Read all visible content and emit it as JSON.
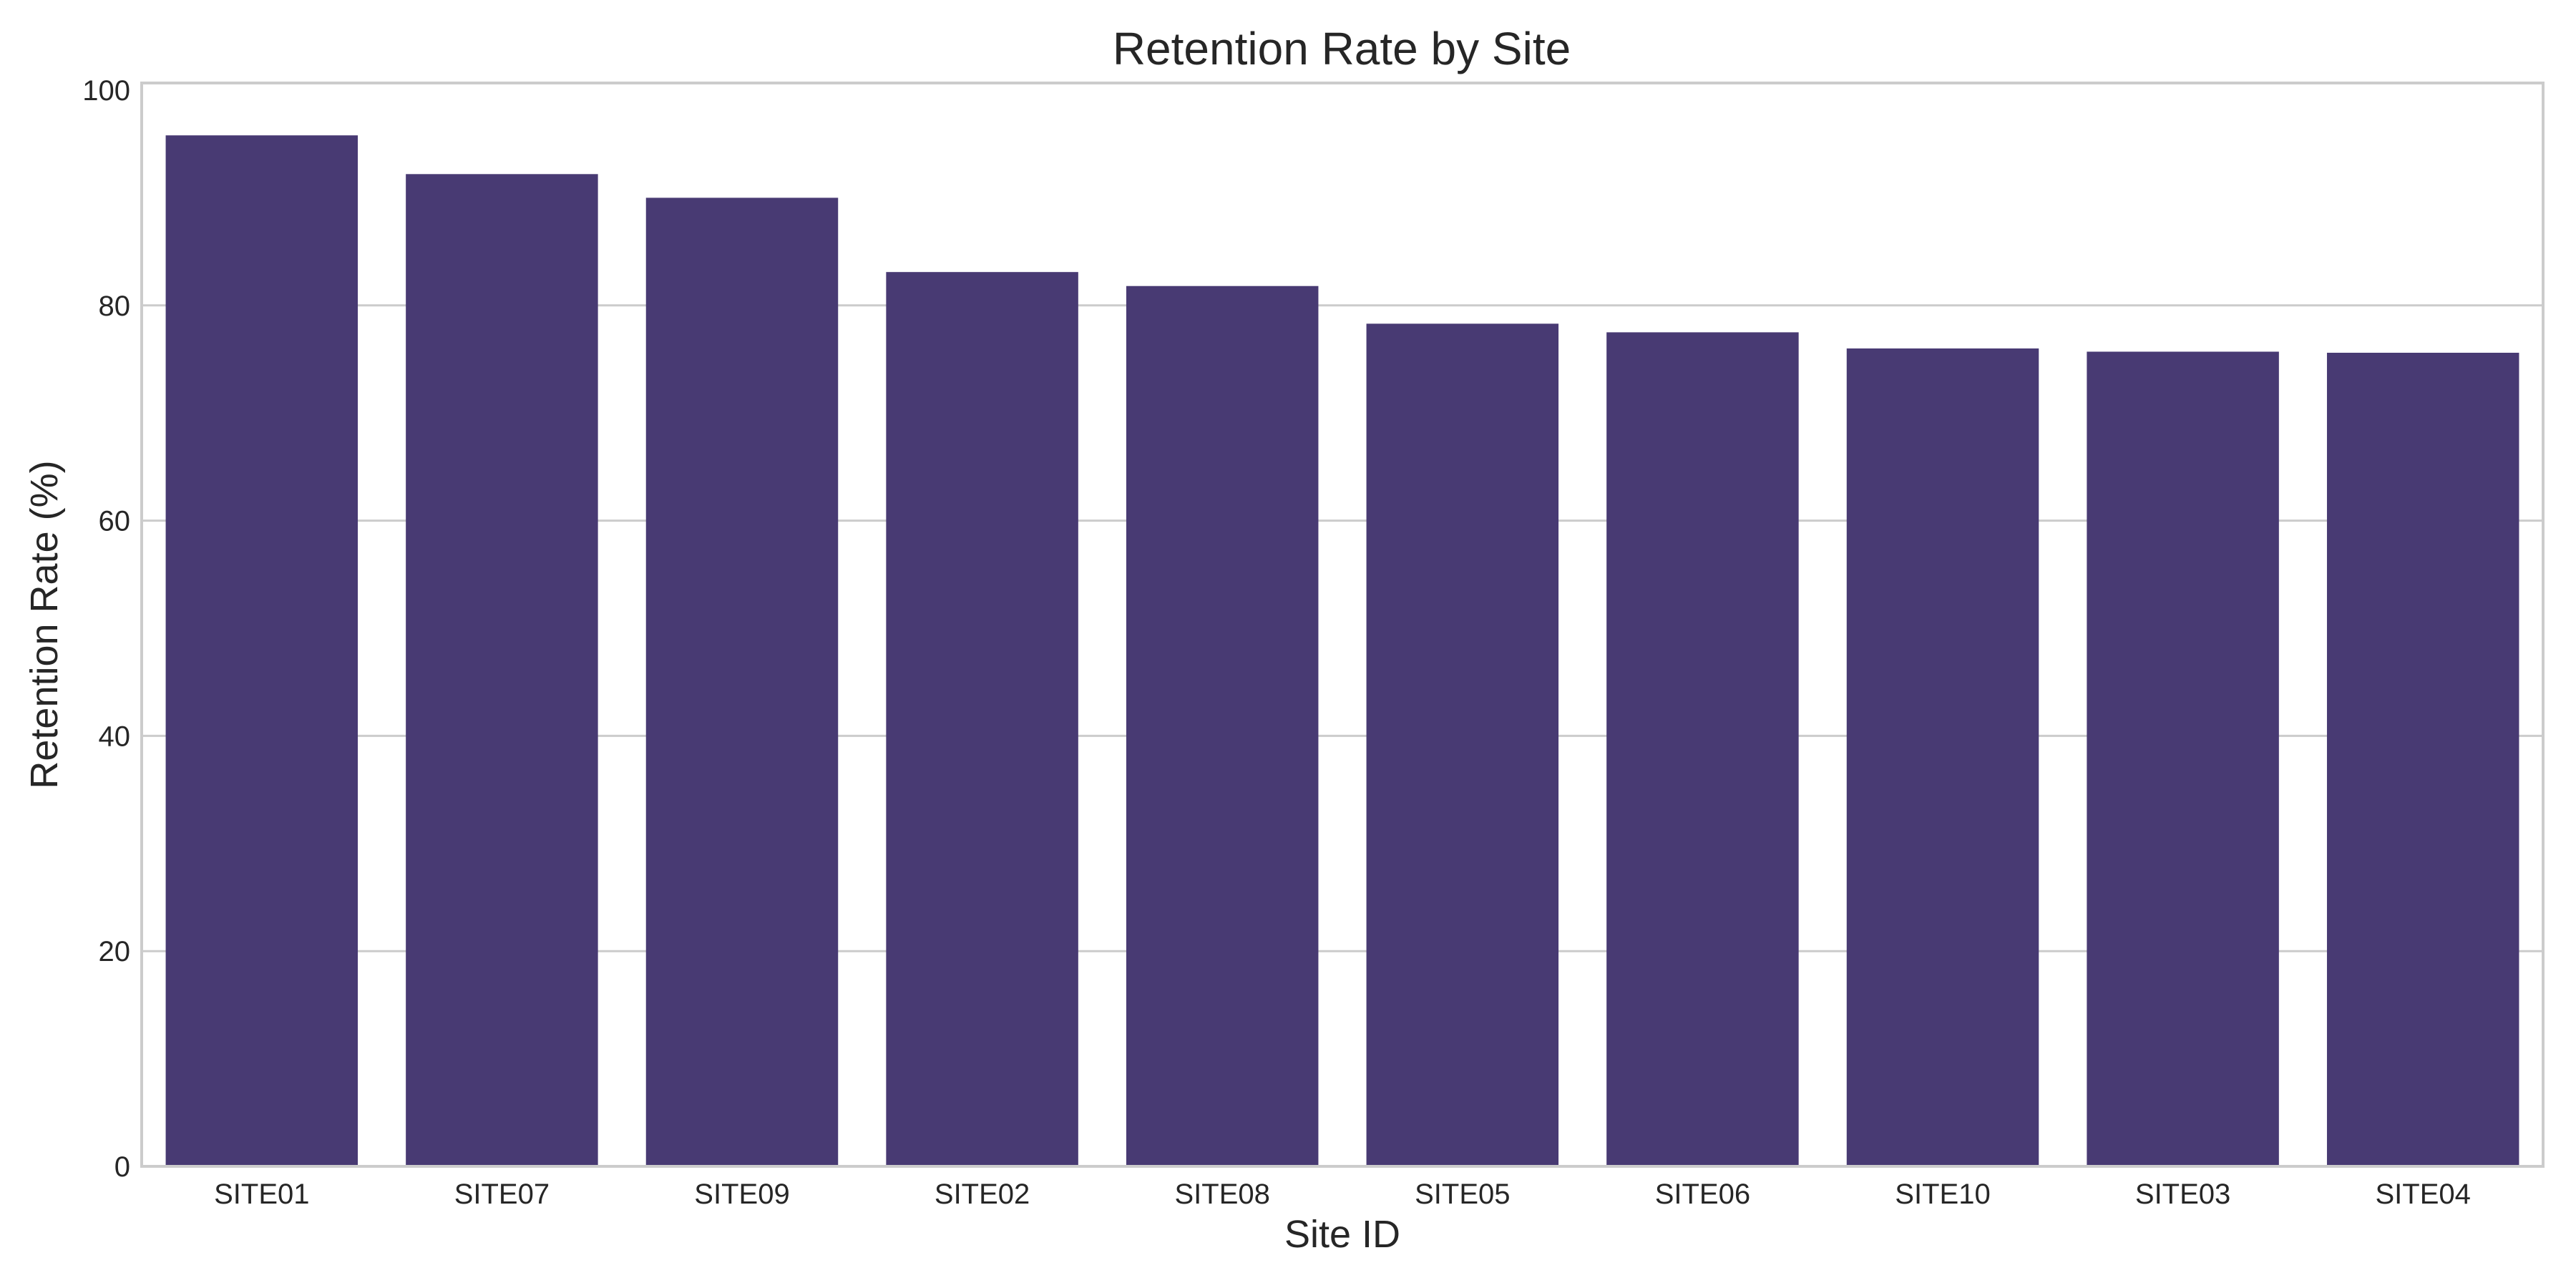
{
  "chart_data": {
    "type": "bar",
    "title": "Retention Rate by Site",
    "xlabel": "Site ID",
    "ylabel": "Retention Rate (%)",
    "categories": [
      "SITE01",
      "SITE07",
      "SITE09",
      "SITE02",
      "SITE08",
      "SITE05",
      "SITE06",
      "SITE10",
      "SITE03",
      "SITE04"
    ],
    "values": [
      95.8,
      92.2,
      90.0,
      83.1,
      81.8,
      78.3,
      77.5,
      76.0,
      75.7,
      75.6
    ],
    "ylim": [
      0,
      100
    ],
    "yticks": [
      "0",
      "20",
      "40",
      "60",
      "80",
      "100"
    ],
    "grid": true,
    "bar_color": "#483a73",
    "grid_color": "#cccccc"
  }
}
